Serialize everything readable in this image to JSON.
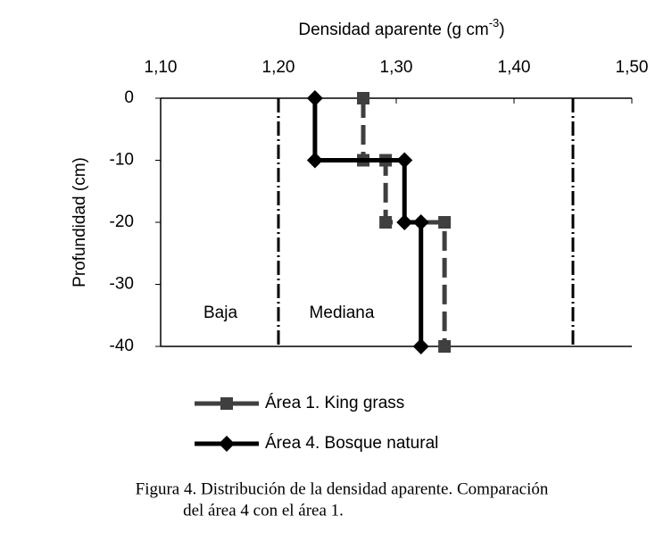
{
  "chart_data": {
    "type": "line",
    "xlabel": {
      "text": "Densidad aparente (g cm",
      "sup": "-3",
      "end": ")"
    },
    "ylabel": "Profundidad (cm)",
    "xlim": [
      1.1,
      1.5
    ],
    "xticks": [
      {
        "value": 1.1,
        "label": "1,10"
      },
      {
        "value": 1.2,
        "label": "1,20"
      },
      {
        "value": 1.3,
        "label": "1,30"
      },
      {
        "value": 1.4,
        "label": "1,40"
      },
      {
        "value": 1.5,
        "label": "1,50"
      }
    ],
    "ylim": [
      -40,
      0
    ],
    "yticks": [
      0,
      -10,
      -20,
      -30,
      -40
    ],
    "boundaries": [
      1.2,
      1.45
    ],
    "annotations": [
      {
        "text": "Baja"
      },
      {
        "text": "Mediana"
      }
    ],
    "series": [
      {
        "name": "Área 1. King grass",
        "color": "#3f3f3f",
        "marker": "square",
        "dashed": true,
        "x": [
          1.272,
          1.272,
          1.291,
          1.291,
          1.341,
          1.341
        ],
        "values": [
          0,
          -10,
          -10,
          -20,
          -20,
          -40
        ]
      },
      {
        "name": "Área 4. Bosque natural",
        "color": "#000000",
        "marker": "diamond",
        "dashed": false,
        "x": [
          1.231,
          1.231,
          1.307,
          1.307,
          1.321,
          1.321
        ],
        "values": [
          0,
          -10,
          -10,
          -20,
          -20,
          -40
        ]
      }
    ],
    "caption": [
      "Figura 4. Distribución de la densidad aparente. Comparación",
      "del  área 4 con el área 1."
    ]
  }
}
